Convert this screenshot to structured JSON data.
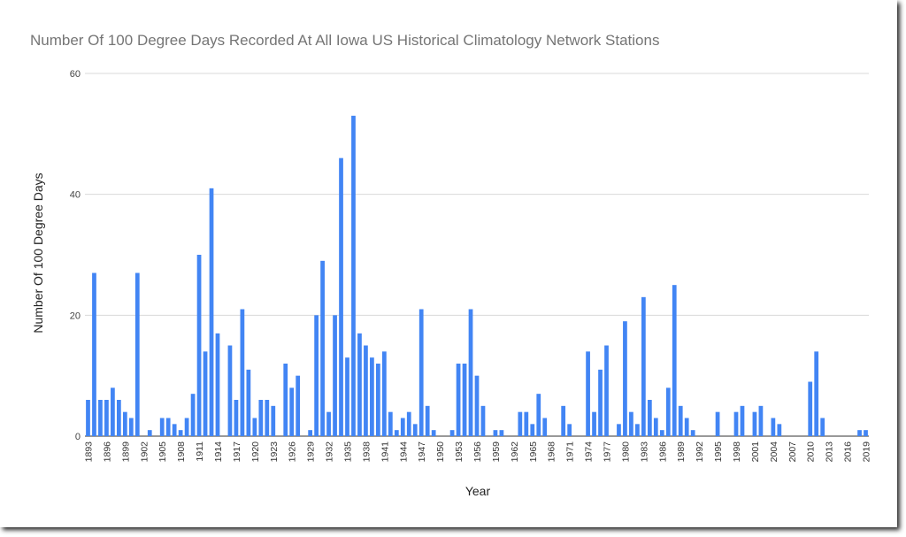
{
  "chart_data": {
    "type": "bar",
    "title": "Number Of 100 Degree Days Recorded At All Iowa US Historical Climatology Network Stations",
    "xlabel": "Year",
    "ylabel": "Number Of 100 Degree Days",
    "ylim": [
      0,
      60
    ],
    "yticks": [
      0,
      20,
      40,
      60
    ],
    "grid": true,
    "legend": "none",
    "bar_color": "#4285f4",
    "tick_years": [
      1893,
      1896,
      1899,
      1902,
      1905,
      1908,
      1911,
      1914,
      1917,
      1920,
      1923,
      1926,
      1929,
      1932,
      1935,
      1938,
      1941,
      1944,
      1947,
      1950,
      1953,
      1956,
      1959,
      1962,
      1965,
      1968,
      1971,
      1974,
      1977,
      1980,
      1983,
      1986,
      1989,
      1992,
      1995,
      1998,
      2001,
      2004,
      2007,
      2010,
      2013,
      2016,
      2019
    ],
    "years": [
      1893,
      1894,
      1895,
      1896,
      1897,
      1898,
      1899,
      1900,
      1901,
      1902,
      1903,
      1904,
      1905,
      1906,
      1907,
      1908,
      1909,
      1910,
      1911,
      1912,
      1913,
      1914,
      1915,
      1916,
      1917,
      1918,
      1919,
      1920,
      1921,
      1922,
      1923,
      1924,
      1925,
      1926,
      1927,
      1928,
      1929,
      1930,
      1931,
      1932,
      1933,
      1934,
      1935,
      1936,
      1937,
      1938,
      1939,
      1940,
      1941,
      1942,
      1943,
      1944,
      1945,
      1946,
      1947,
      1948,
      1949,
      1950,
      1951,
      1952,
      1953,
      1954,
      1955,
      1956,
      1957,
      1958,
      1959,
      1960,
      1961,
      1962,
      1963,
      1964,
      1965,
      1966,
      1967,
      1968,
      1969,
      1970,
      1971,
      1972,
      1973,
      1974,
      1975,
      1976,
      1977,
      1978,
      1979,
      1980,
      1981,
      1982,
      1983,
      1984,
      1985,
      1986,
      1987,
      1988,
      1989,
      1990,
      1991,
      1992,
      1993,
      1994,
      1995,
      1996,
      1997,
      1998,
      1999,
      2000,
      2001,
      2002,
      2003,
      2004,
      2005,
      2006,
      2007,
      2008,
      2009,
      2010,
      2011,
      2012,
      2013,
      2014,
      2015,
      2016,
      2017,
      2018,
      2019
    ],
    "values": [
      6,
      27,
      6,
      6,
      8,
      6,
      4,
      3,
      27,
      0,
      1,
      0,
      3,
      3,
      2,
      1,
      3,
      7,
      30,
      14,
      41,
      17,
      0,
      15,
      6,
      21,
      11,
      3,
      6,
      6,
      5,
      0,
      12,
      8,
      10,
      0,
      1,
      20,
      29,
      4,
      20,
      46,
      13,
      53,
      17,
      15,
      13,
      12,
      14,
      4,
      1,
      3,
      4,
      2,
      21,
      5,
      1,
      0,
      0,
      1,
      12,
      12,
      21,
      10,
      5,
      0,
      1,
      1,
      0,
      0,
      4,
      4,
      2,
      7,
      3,
      0,
      0,
      5,
      2,
      0,
      0,
      14,
      4,
      11,
      15,
      0,
      2,
      19,
      4,
      2,
      23,
      6,
      3,
      1,
      8,
      25,
      5,
      3,
      1,
      0,
      0,
      0,
      4,
      0,
      0,
      4,
      5,
      0,
      4,
      5,
      0,
      3,
      2,
      0,
      0,
      0,
      0,
      9,
      14,
      3,
      0,
      0,
      0,
      0,
      0,
      1,
      1
    ]
  }
}
